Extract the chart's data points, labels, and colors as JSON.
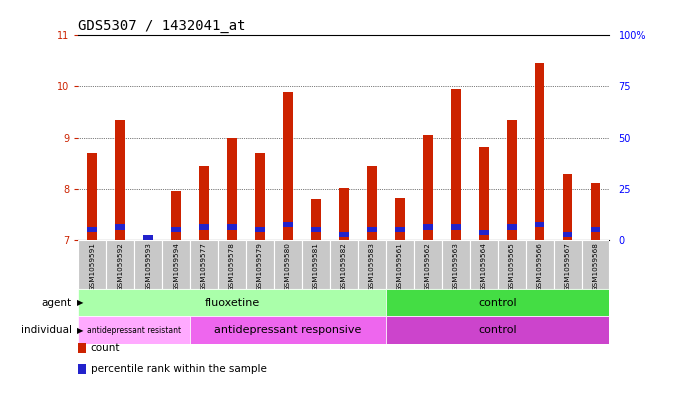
{
  "title": "GDS5307 / 1432041_at",
  "samples": [
    "GSM1059591",
    "GSM1059592",
    "GSM1059593",
    "GSM1059594",
    "GSM1059577",
    "GSM1059578",
    "GSM1059579",
    "GSM1059580",
    "GSM1059581",
    "GSM1059582",
    "GSM1059583",
    "GSM1059561",
    "GSM1059562",
    "GSM1059563",
    "GSM1059564",
    "GSM1059565",
    "GSM1059566",
    "GSM1059567",
    "GSM1059568"
  ],
  "red_values": [
    8.7,
    9.35,
    7.1,
    7.95,
    8.45,
    9.0,
    8.7,
    9.9,
    7.8,
    8.02,
    8.45,
    7.82,
    9.05,
    9.95,
    8.82,
    9.35,
    10.45,
    8.28,
    8.12
  ],
  "blue_values": [
    7.2,
    7.25,
    7.05,
    7.2,
    7.25,
    7.25,
    7.2,
    7.3,
    7.2,
    7.1,
    7.2,
    7.2,
    7.25,
    7.25,
    7.15,
    7.25,
    7.3,
    7.1,
    7.2
  ],
  "y_min": 7,
  "y_max": 11,
  "y_ticks": [
    7,
    8,
    9,
    10,
    11
  ],
  "right_ticks": [
    0,
    25,
    50,
    75,
    100
  ],
  "right_tick_positions": [
    7,
    8,
    9,
    10,
    11
  ],
  "bar_width": 0.35,
  "agent_groups": [
    {
      "label": "fluoxetine",
      "start": 0,
      "end": 11,
      "color": "#AAFFAA"
    },
    {
      "label": "control",
      "start": 11,
      "end": 19,
      "color": "#44DD44"
    }
  ],
  "individual_groups": [
    {
      "label": "antidepressant resistant",
      "start": 0,
      "end": 4,
      "color": "#FFAAFF"
    },
    {
      "label": "antidepressant responsive",
      "start": 4,
      "end": 11,
      "color": "#EE66EE"
    },
    {
      "label": "control",
      "start": 11,
      "end": 19,
      "color": "#CC44CC"
    }
  ],
  "title_fontsize": 10,
  "tick_fontsize": 7,
  "red_color": "#CC2200",
  "blue_color": "#2222CC",
  "background_color": "#FFFFFF",
  "plot_bg": "#FFFFFF",
  "gray_box_color": "#C8C8C8",
  "legend_items": [
    {
      "label": "count",
      "color": "#CC2200"
    },
    {
      "label": "percentile rank within the sample",
      "color": "#2222CC"
    }
  ]
}
